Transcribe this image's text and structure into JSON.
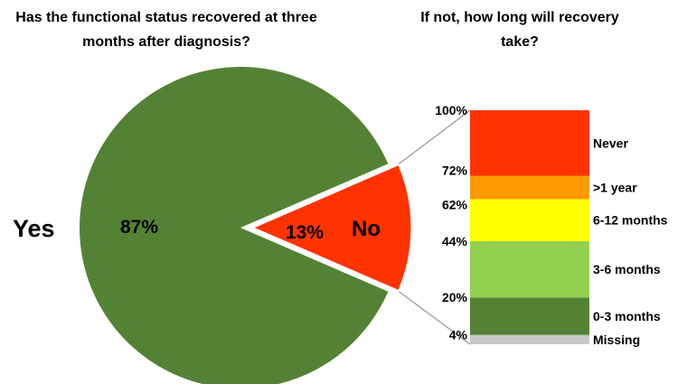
{
  "titles": {
    "left": "Has the functional status recovered at three months after diagnosis?",
    "right": "If not, how long will recovery take?"
  },
  "chart_data": [
    {
      "type": "pie",
      "title": "Has the functional status recovered at three months after diagnosis?",
      "slices": [
        {
          "label": "Yes",
          "value": 87,
          "value_label": "87%",
          "color": "#548235"
        },
        {
          "label": "No",
          "value": 13,
          "value_label": "13%",
          "color": "#ff3300",
          "exploded": true
        }
      ]
    },
    {
      "type": "bar",
      "stacked": true,
      "title": "If not, how long will recovery take?",
      "ylim": [
        0,
        100
      ],
      "ticks": [
        {
          "value": 100,
          "label": "100%"
        },
        {
          "value": 72,
          "label": "72%"
        },
        {
          "value": 62,
          "label": "62%"
        },
        {
          "value": 44,
          "label": "44%"
        },
        {
          "value": 20,
          "label": "20%"
        },
        {
          "value": 4,
          "label": "4%"
        }
      ],
      "segments": [
        {
          "label": "Missing",
          "start": 0,
          "end": 4,
          "color": "#c8c8c8"
        },
        {
          "label": "0-3 months",
          "start": 4,
          "end": 20,
          "color": "#548235"
        },
        {
          "label": "3-6 months",
          "start": 20,
          "end": 44,
          "color": "#92d050"
        },
        {
          "label": "6-12 months",
          "start": 44,
          "end": 62,
          "color": "#ffff00"
        },
        {
          "label": ">1 year",
          "start": 62,
          "end": 72,
          "color": "#ff9900"
        },
        {
          "label": "Never",
          "start": 72,
          "end": 100,
          "color": "#ff3300"
        }
      ]
    }
  ]
}
